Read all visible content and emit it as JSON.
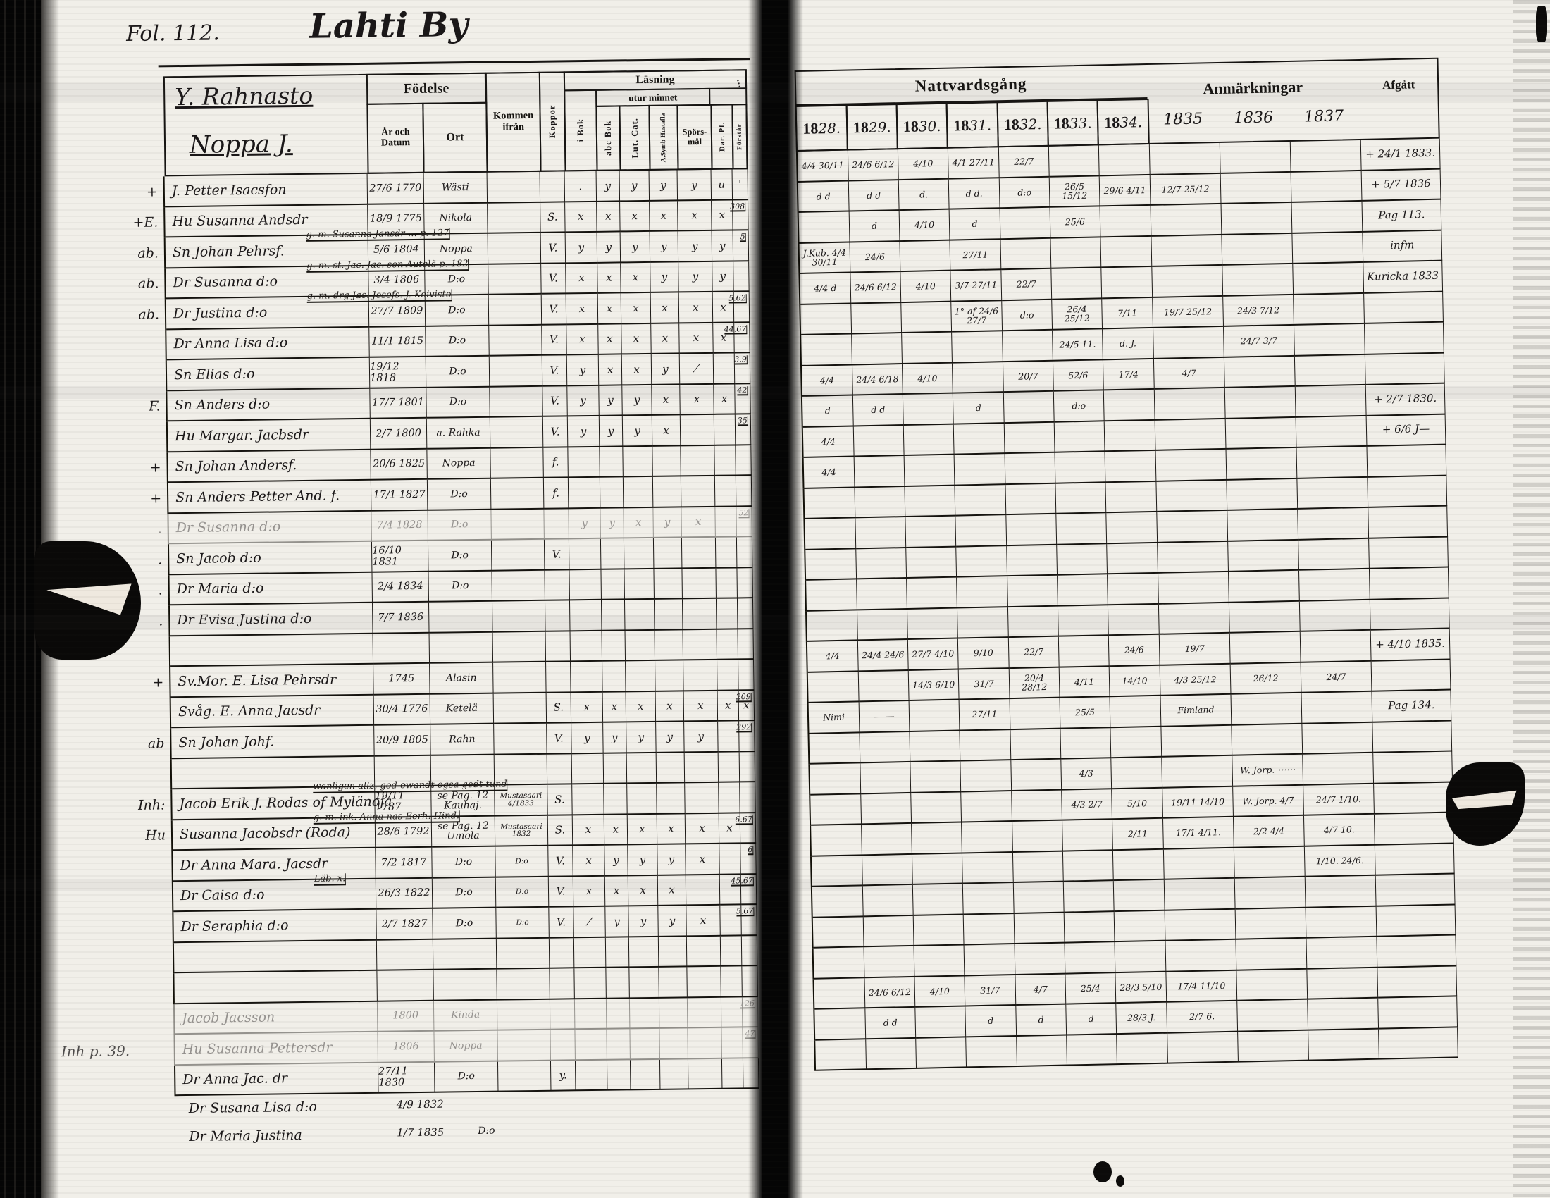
{
  "meta": {
    "folio": "Fol. 112.",
    "village_title": "Lahti By",
    "farm_name": "Y. Rahnasto",
    "household_name": "Noppa J.",
    "margin_note": "Inh p. 39.",
    "ink_color": "#15130f",
    "paper_color": "#f1efe9"
  },
  "left": {
    "h": {
      "fodelse": "Födelse",
      "ar_och_datum": "År och Datum",
      "ort": "Ort",
      "kommen_ifran": "Kommen ifrån",
      "koppor": "Koppor",
      "lasning": "Läsning",
      "i_bok": "i Bok",
      "utur_minnet": "utur minnet",
      "abc_bok": "abc Bok",
      "lut_cat": "Lut. Cat.",
      "symb": "A.Symb Hustafla",
      "sporsmal": "Spörs- mål",
      "dar_pf": "Dar. Pf.",
      "forstar": "Förstår",
      "illegible_col": "⋯"
    },
    "rows": [
      {
        "m": "+",
        "n": "J. Petter Isacsfon",
        "d": "27/6 1770",
        "o": "Wästi",
        "k": "",
        "v": "",
        "r": [
          ".",
          "y",
          "y",
          "y",
          "y",
          "u",
          "'"
        ],
        "t": ""
      },
      {
        "m": "+E.",
        "n": "Hu Susanna Andsdr",
        "d": "18/9 1775",
        "o": "Nikola",
        "k": "",
        "v": "S.",
        "r": [
          "x",
          "x",
          "x",
          "x",
          "x",
          "x",
          ""
        ],
        "t": "308"
      },
      {
        "m": "ab.",
        "n": "Sn Johan Pehrsf.",
        "d": "5/6 1804",
        "o": "Noppa",
        "k": "",
        "v": "V.",
        "r": [
          "y",
          "y",
          "y",
          "y",
          "y",
          "y",
          ""
        ],
        "t": "5",
        "note": "g. m. Susanna Jansdr … p. 127"
      },
      {
        "m": "ab.",
        "n": "Dr Susanna d:o",
        "d": "3/4 1806",
        "o": "D:o",
        "k": "",
        "v": "V.",
        "r": [
          "x",
          "x",
          "x",
          "y",
          "y",
          "y",
          ""
        ],
        "t": "",
        "note": "g. m. st. Jac. Jac. son Autelä p. 182"
      },
      {
        "m": "ab.",
        "n": "Dr Justina d:o",
        "d": "27/7 1809",
        "o": "D:o",
        "k": "",
        "v": "V.",
        "r": [
          "x",
          "x",
          "x",
          "x",
          "x",
          "x",
          ""
        ],
        "t": "5.62",
        "note": "g. m. drg Jac. Josefs. J. Koivisto"
      },
      {
        "m": "",
        "n": "Dr Anna Lisa d:o",
        "d": "11/1 1815",
        "o": "D:o",
        "k": "",
        "v": "V.",
        "r": [
          "x",
          "x",
          "x",
          "x",
          "x",
          "x",
          ""
        ],
        "t": "44.67"
      },
      {
        "m": "",
        "n": "Sn Elias d:o",
        "d": "19/12 1818",
        "o": "D:o",
        "k": "",
        "v": "V.",
        "r": [
          "y",
          "x",
          "x",
          "y",
          "⁄",
          "",
          ""
        ],
        "t": "3.9"
      },
      {
        "m": "F.",
        "n": "Sn Anders d:o",
        "d": "17/7 1801",
        "o": "D:o",
        "k": "",
        "v": "V.",
        "r": [
          "y",
          "y",
          "y",
          "x",
          "x",
          "x",
          ""
        ],
        "t": "42"
      },
      {
        "m": "",
        "n": "Hu Margar. Jacbsdr",
        "d": "2/7 1800",
        "o": "a. Rahka",
        "k": "",
        "v": "V.",
        "r": [
          "y",
          "y",
          "y",
          "x",
          "",
          "",
          ""
        ],
        "t": "35"
      },
      {
        "m": "+",
        "n": "Sn Johan Andersf.",
        "d": "20/6 1825",
        "o": "Noppa",
        "k": "",
        "v": "f.",
        "r": [],
        "t": ""
      },
      {
        "m": "+",
        "n": "Sn Anders Petter And. f.",
        "d": "17/1 1827",
        "o": "D:o",
        "k": "",
        "v": "f.",
        "r": [],
        "t": ""
      },
      {
        "m": ".",
        "n": "Dr Susanna d:o",
        "d": "7/4 1828",
        "o": "D:o",
        "k": "",
        "v": "",
        "r": [
          "y",
          "y",
          "x",
          "y",
          "x",
          "",
          ""
        ],
        "t": "52",
        "faint": true
      },
      {
        "m": ".",
        "n": "Sn Jacob d:o",
        "d": "16/10 1831",
        "o": "D:o",
        "k": "",
        "v": "V.",
        "r": [],
        "t": ""
      },
      {
        "m": ".",
        "n": "Dr Maria d:o",
        "d": "2/4 1834",
        "o": "D:o",
        "k": "",
        "v": "",
        "r": [],
        "t": ""
      },
      {
        "m": ".",
        "n": "Dr Evisa Justina d:o",
        "d": "7/7 1836",
        "o": "",
        "k": "",
        "v": "",
        "r": [],
        "t": ""
      },
      {
        "blank": true
      },
      {
        "m": "+",
        "n": "Sv.Mor. E. Lisa Pehrsdr",
        "d": "1745",
        "o": "Alasin",
        "k": "",
        "v": "",
        "r": [],
        "t": ""
      },
      {
        "m": "",
        "n": "Svåg. E. Anna Jacsdr",
        "d": "30/4 1776",
        "o": "Ketelä",
        "k": "",
        "v": "S.",
        "r": [
          "x",
          "x",
          "x",
          "x",
          "x",
          "x",
          "x"
        ],
        "t": "209"
      },
      {
        "m": "ab",
        "n": "Sn Johan Johf.",
        "d": "20/9 1805",
        "o": "Rahn",
        "k": "",
        "v": "V.",
        "r": [
          "y",
          "y",
          "y",
          "y",
          "y",
          "",
          ""
        ],
        "t": "292"
      },
      {
        "blank": true
      },
      {
        "m": "Inh:",
        "n": "Jacob Erik J. Rodas of Mylänoja",
        "d": "19/11 1787",
        "o": "se Pag. 12 Kauhaj.",
        "k": "Mustasaari 4/1833",
        "v": "S.",
        "r": [],
        "t": "",
        "note": "wanligen allz, god owandt ogsa godt tund"
      },
      {
        "m": "Hu",
        "n": "Susanna Jacobsdr  (Roda)",
        "d": "28/6 1792",
        "o": "se Pag. 12 Umola",
        "k": "Mustasaari 1832",
        "v": "S.",
        "r": [
          "x",
          "x",
          "x",
          "x",
          "x",
          "x",
          ""
        ],
        "t": "6.67",
        "note": "g. m. ink. Anna nas Eorh. Hind."
      },
      {
        "m": "",
        "n": "Dr Anna Mara. Jacsdr",
        "d": "7/2 1817",
        "o": "D:o",
        "k": "D:o",
        "v": "V.",
        "r": [
          "x",
          "y",
          "y",
          "y",
          "x",
          "",
          ""
        ],
        "t": "6"
      },
      {
        "m": "",
        "n": "Dr Caisa d:o",
        "d": "26/3 1822",
        "o": "D:o",
        "k": "D:o",
        "v": "V.",
        "r": [
          "x",
          "x",
          "x",
          "x",
          "",
          "",
          ""
        ],
        "t": "45.67",
        "note": "Läb. x."
      },
      {
        "m": "",
        "n": "Dr Seraphia d:o",
        "d": "2/7 1827",
        "o": "D:o",
        "k": "D:o",
        "v": "V.",
        "r": [
          "⁄",
          "y",
          "y",
          "y",
          "x",
          "",
          ""
        ],
        "t": "5.67"
      },
      {
        "blank": true
      },
      {
        "blank": true
      },
      {
        "m": "",
        "n": "Jacob Jacsson",
        "d": "1800",
        "o": "Kinda",
        "k": "",
        "v": "",
        "r": [],
        "t": "126",
        "faint": true
      },
      {
        "m": "",
        "n": "Hu Susanna Pettersdr",
        "d": "1806",
        "o": "Noppa",
        "k": "",
        "v": "",
        "r": [],
        "t": "47",
        "faint": true
      },
      {
        "m": "",
        "n": "Dr Anna Jac. dr",
        "d": "27/11 1830",
        "o": "D:o",
        "k": "",
        "v": "y.",
        "r": [],
        "t": ""
      }
    ],
    "below_rows": [
      {
        "n": "Dr Susana Lisa   d:o",
        "d": "4/9 1832",
        "o": ""
      },
      {
        "n": "Dr Maria Justina",
        "d": "1/7 1835",
        "o": "D:o"
      }
    ]
  },
  "right": {
    "h": {
      "nattvardsgang": "Nattvardsgång",
      "year_prefix": "18",
      "year_suffixes": [
        "28.",
        "29.",
        "30.",
        "31.",
        "32.",
        "33.",
        "34."
      ],
      "anmarkningar": "Anmärkningar",
      "anm_years": [
        "1835",
        "1836",
        "1837"
      ],
      "afgatt": "Afgått"
    },
    "rows": [
      {
        "c": [
          "4/4 30/11",
          "24/6 6/12",
          "4/10",
          "4/1 27/11",
          "22/7",
          "",
          "",
          "",
          "",
          ""
        ],
        "a": "+ 24/1 1833."
      },
      {
        "c": [
          "d  d",
          "d  d",
          "d.",
          "d  d.",
          "d:o",
          "26/5 15/12",
          "29/6 4/11",
          "12/7 25/12",
          "",
          ""
        ],
        "a": "+ 5/7 1836"
      },
      {
        "c": [
          "",
          "d",
          "4/10",
          "d",
          "",
          "25/6",
          "",
          "",
          "",
          ""
        ],
        "a": "Pag 113."
      },
      {
        "c": [
          "J.Kub. 4/4 30/11",
          "24/6",
          "",
          "27/11",
          "",
          "",
          "",
          "",
          "",
          ""
        ],
        "a": "infm"
      },
      {
        "c": [
          "4/4 d",
          "24/6 6/12",
          "4/10",
          "3/7 27/11",
          "22/7",
          "",
          "",
          "",
          "",
          ""
        ],
        "a": "Kuricka 1833"
      },
      {
        "c": [
          "",
          "",
          "",
          "1° af 24/6 27/7",
          "d:o",
          "26/4 25/12",
          "7/11",
          "19/7 25/12",
          "24/3 7/12",
          ""
        ],
        "a": ""
      },
      {
        "c": [
          "",
          "",
          "",
          "",
          "",
          "24/5 11.",
          "d. J.",
          "",
          "24/7 3/7",
          ""
        ],
        "a": ""
      },
      {
        "c": [
          "4/4",
          "24/4 6/18",
          "4/10",
          "",
          "20/7",
          "52/6",
          "17/4",
          "4/7",
          "",
          ""
        ],
        "a": ""
      },
      {
        "c": [
          "d",
          "d  d",
          "",
          "d",
          "",
          "d:o",
          "",
          "",
          "",
          ""
        ],
        "a": "+ 2/7 1830."
      },
      {
        "c": [
          "4/4",
          "",
          "",
          "",
          "",
          "",
          "",
          "",
          "",
          ""
        ],
        "a": "+ 6/6 J—"
      },
      {
        "c": [
          "4/4",
          "",
          "",
          "",
          "",
          "",
          "",
          "",
          "",
          ""
        ],
        "a": ""
      },
      {
        "blank": true
      },
      {
        "blank": true
      },
      {
        "blank": true
      },
      {
        "blank": true
      },
      {
        "blank": true
      },
      {
        "c": [
          "4/4",
          "24/4 24/6",
          "27/7 4/10",
          "9/10",
          "22/7",
          "",
          "24/6",
          "19/7",
          "",
          ""
        ],
        "a": "+ 4/10 1835."
      },
      {
        "c": [
          "",
          "",
          "14/3 6/10",
          "31/7",
          "20/4 28/12",
          "4/11",
          "14/10",
          "4/3 25/12",
          "26/12",
          "24/7"
        ],
        "a": ""
      },
      {
        "c": [
          "Nimi",
          "— —",
          "",
          "27/11",
          "",
          "25/5",
          "",
          "Fimland",
          "",
          ""
        ],
        "a": "Pag 134."
      },
      {
        "blank": true
      },
      {
        "c": [
          "",
          "",
          "",
          "",
          "",
          "4/3",
          "",
          "",
          "W. Jorp. ⋯⋯",
          ""
        ],
        "a": ""
      },
      {
        "c": [
          "",
          "",
          "",
          "",
          "",
          "4/3 2/7",
          "5/10",
          "19/11 14/10",
          "W. Jorp. 4/7",
          "24/7 1/10."
        ],
        "a": ""
      },
      {
        "c": [
          "",
          "",
          "",
          "",
          "",
          "",
          "2/11",
          "17/1 4/11.",
          "2/2 4/4",
          "4/7 10."
        ],
        "a": ""
      },
      {
        "c": [
          "",
          "",
          "",
          "",
          "",
          "",
          "",
          "",
          "",
          "1/10. 24/6."
        ],
        "a": ""
      },
      {
        "blank": true
      },
      {
        "blank": true
      },
      {
        "blank": true
      },
      {
        "c": [
          "",
          "24/6 6/12",
          "4/10",
          "31/7",
          "4/7",
          "25/4",
          "28/3 5/10",
          "17/4 11/10",
          "",
          ""
        ],
        "a": ""
      },
      {
        "c": [
          "",
          "d  d",
          "",
          "d",
          "d",
          "d",
          "28/3 J.",
          "2/7 6.",
          "",
          ""
        ],
        "a": ""
      },
      {
        "blank": true
      }
    ]
  }
}
